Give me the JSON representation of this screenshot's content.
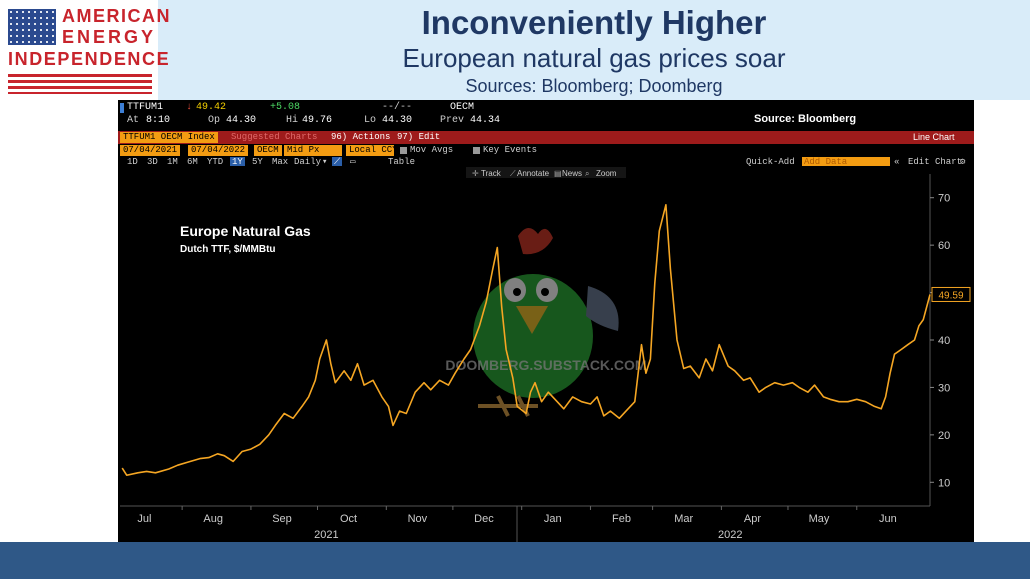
{
  "logo": {
    "line1": "AMERICAN",
    "line2": "ENERGY",
    "line3": "INDEPENDENCE",
    "color": "#c8242c"
  },
  "header": {
    "title": "Inconveniently Higher",
    "subtitle": "European natural gas prices soar",
    "sources": "Sources: Bloomberg; Doomberg"
  },
  "terminal": {
    "ticker": "TTFUM1",
    "last": "49.42",
    "change": "+5.08",
    "dashes": "--/--",
    "exchange": "OECM",
    "at_label": "At",
    "at_time": "8:10",
    "op_label": "Op",
    "op_value": "44.30",
    "hi_label": "Hi",
    "hi_value": "49.76",
    "lo_label": "Lo",
    "lo_value": "44.30",
    "prev_label": "Prev",
    "prev_value": "44.34",
    "source": "Source: Bloomberg",
    "security": "TTFUM1 OECM Index",
    "suggested": "Suggested Charts",
    "actions": "96) Actions",
    "edit": "97) Edit",
    "chart_kind": "Line Chart",
    "date_from": "07/04/2021",
    "date_to": "07/04/2022",
    "exch_field": "OECM",
    "price_field": "Mid Px",
    "ccy_field": "Local CCY",
    "mov_avgs": "Mov Avgs",
    "key_events": "Key Events",
    "periods": [
      "1D",
      "3D",
      "1M",
      "6M",
      "YTD",
      "1Y",
      "5Y",
      "Max"
    ],
    "selected_period": "1Y",
    "frequency": "Daily",
    "table": "Table",
    "quick_add": "Quick-Add",
    "add_data": "Add Data",
    "edit_chart": "Edit Chart",
    "tools": [
      "Track",
      "Annotate",
      "News",
      "Zoom"
    ],
    "watermark": "DOOMBERG.SUBSTACK.COM"
  },
  "chart_data": {
    "type": "line",
    "title": "Europe Natural Gas",
    "subtitle": "Dutch TTF, $/MMBtu",
    "x_start": "2021-07-04",
    "x_end": "2022-07-04",
    "month_ticks": [
      "Jul",
      "Aug",
      "Sep",
      "Oct",
      "Nov",
      "Dec",
      "Jan",
      "Feb",
      "Mar",
      "Apr",
      "May",
      "Jun"
    ],
    "year_labels": [
      "2021",
      "2022"
    ],
    "ylim": [
      5,
      75
    ],
    "yticks": [
      10,
      20,
      30,
      40,
      50,
      60,
      70
    ],
    "last_value_label": "49.59",
    "line_color": "#f5a623",
    "series": [
      {
        "points": [
          [
            "2021-07-05",
            13.0
          ],
          [
            "2021-07-07",
            11.5
          ],
          [
            "2021-07-12",
            12.0
          ],
          [
            "2021-07-16",
            12.3
          ],
          [
            "2021-07-20",
            12.0
          ],
          [
            "2021-07-26",
            12.8
          ],
          [
            "2021-07-30",
            13.6
          ],
          [
            "2021-08-04",
            14.3
          ],
          [
            "2021-08-09",
            15.0
          ],
          [
            "2021-08-13",
            15.2
          ],
          [
            "2021-08-17",
            16.0
          ],
          [
            "2021-08-20",
            15.6
          ],
          [
            "2021-08-24",
            14.4
          ],
          [
            "2021-08-28",
            16.5
          ],
          [
            "2021-09-01",
            17.0
          ],
          [
            "2021-09-05",
            18.0
          ],
          [
            "2021-09-09",
            20.0
          ],
          [
            "2021-09-12",
            22.0
          ],
          [
            "2021-09-16",
            24.5
          ],
          [
            "2021-09-20",
            23.5
          ],
          [
            "2021-09-24",
            26.0
          ],
          [
            "2021-09-27",
            28.0
          ],
          [
            "2021-09-30",
            31.5
          ],
          [
            "2021-10-02",
            36.0
          ],
          [
            "2021-10-05",
            40.0
          ],
          [
            "2021-10-07",
            35.0
          ],
          [
            "2021-10-09",
            31.0
          ],
          [
            "2021-10-13",
            33.5
          ],
          [
            "2021-10-16",
            31.5
          ],
          [
            "2021-10-19",
            35.0
          ],
          [
            "2021-10-22",
            30.5
          ],
          [
            "2021-10-26",
            31.5
          ],
          [
            "2021-10-30",
            28.0
          ],
          [
            "2021-11-02",
            26.0
          ],
          [
            "2021-11-04",
            22.0
          ],
          [
            "2021-11-07",
            25.0
          ],
          [
            "2021-11-10",
            24.5
          ],
          [
            "2021-11-14",
            29.0
          ],
          [
            "2021-11-18",
            31.0
          ],
          [
            "2021-11-21",
            29.5
          ],
          [
            "2021-11-25",
            31.5
          ],
          [
            "2021-11-29",
            30.5
          ],
          [
            "2021-12-02",
            33.0
          ],
          [
            "2021-12-06",
            36.0
          ],
          [
            "2021-12-09",
            38.0
          ],
          [
            "2021-12-13",
            43.0
          ],
          [
            "2021-12-16",
            48.0
          ],
          [
            "2021-12-19",
            55.0
          ],
          [
            "2021-12-21",
            59.5
          ],
          [
            "2021-12-23",
            47.0
          ],
          [
            "2021-12-25",
            38.0
          ],
          [
            "2021-12-28",
            32.0
          ],
          [
            "2021-12-30",
            26.0
          ],
          [
            "2022-01-03",
            24.5
          ],
          [
            "2022-01-05",
            29.0
          ],
          [
            "2022-01-07",
            31.0
          ],
          [
            "2022-01-10",
            27.0
          ],
          [
            "2022-01-13",
            29.0
          ],
          [
            "2022-01-17",
            27.0
          ],
          [
            "2022-01-20",
            25.5
          ],
          [
            "2022-01-24",
            28.0
          ],
          [
            "2022-01-28",
            27.0
          ],
          [
            "2022-02-01",
            26.5
          ],
          [
            "2022-02-04",
            28.0
          ],
          [
            "2022-02-07",
            24.0
          ],
          [
            "2022-02-10",
            25.0
          ],
          [
            "2022-02-14",
            23.5
          ],
          [
            "2022-02-17",
            25.0
          ],
          [
            "2022-02-21",
            27.0
          ],
          [
            "2022-02-24",
            39.0
          ],
          [
            "2022-02-26",
            33.0
          ],
          [
            "2022-02-28",
            36.0
          ],
          [
            "2022-03-02",
            52.0
          ],
          [
            "2022-03-04",
            63.0
          ],
          [
            "2022-03-07",
            68.5
          ],
          [
            "2022-03-09",
            55.0
          ],
          [
            "2022-03-12",
            40.0
          ],
          [
            "2022-03-15",
            34.0
          ],
          [
            "2022-03-18",
            34.5
          ],
          [
            "2022-03-22",
            32.0
          ],
          [
            "2022-03-25",
            36.0
          ],
          [
            "2022-03-28",
            33.5
          ],
          [
            "2022-03-31",
            39.0
          ],
          [
            "2022-04-04",
            34.5
          ],
          [
            "2022-04-07",
            33.5
          ],
          [
            "2022-04-11",
            31.5
          ],
          [
            "2022-04-14",
            32.0
          ],
          [
            "2022-04-18",
            29.0
          ],
          [
            "2022-04-21",
            30.0
          ],
          [
            "2022-04-25",
            31.0
          ],
          [
            "2022-04-29",
            30.5
          ],
          [
            "2022-05-03",
            31.0
          ],
          [
            "2022-05-06",
            30.0
          ],
          [
            "2022-05-10",
            29.0
          ],
          [
            "2022-05-13",
            30.5
          ],
          [
            "2022-05-17",
            28.0
          ],
          [
            "2022-05-20",
            27.5
          ],
          [
            "2022-05-24",
            27.0
          ],
          [
            "2022-05-28",
            27.0
          ],
          [
            "2022-06-01",
            27.5
          ],
          [
            "2022-06-05",
            27.0
          ],
          [
            "2022-06-09",
            26.0
          ],
          [
            "2022-06-12",
            25.5
          ],
          [
            "2022-06-14",
            28.0
          ],
          [
            "2022-06-16",
            33.0
          ],
          [
            "2022-06-18",
            37.0
          ],
          [
            "2022-06-21",
            38.0
          ],
          [
            "2022-06-24",
            39.0
          ],
          [
            "2022-06-27",
            40.0
          ],
          [
            "2022-06-29",
            43.0
          ],
          [
            "2022-07-01",
            44.3
          ],
          [
            "2022-07-04",
            49.6
          ]
        ]
      }
    ]
  }
}
